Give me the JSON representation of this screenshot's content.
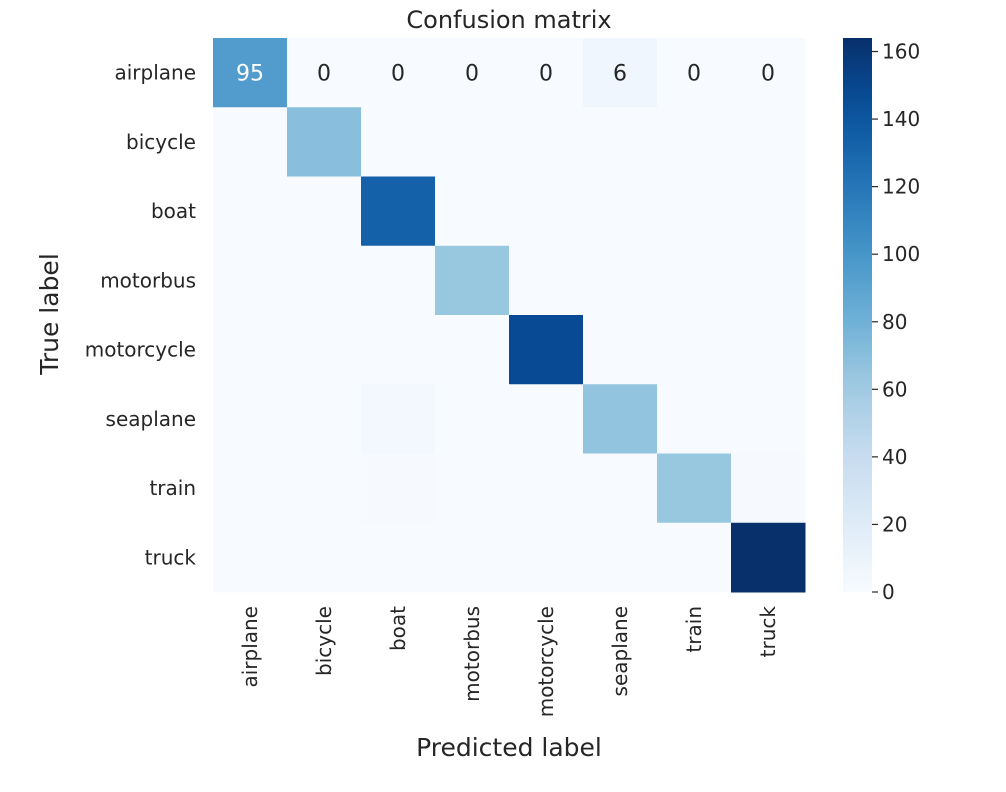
{
  "chart_data": {
    "type": "heatmap",
    "title": "Confusion matrix",
    "xlabel": "Predicted label",
    "ylabel": "True label",
    "x_categories": [
      "airplane",
      "bicycle",
      "boat",
      "motorbus",
      "motorcycle",
      "seaplane",
      "train",
      "truck"
    ],
    "y_categories": [
      "airplane",
      "bicycle",
      "boat",
      "motorbus",
      "motorcycle",
      "seaplane",
      "train",
      "truck"
    ],
    "values": [
      [
        95,
        0,
        0,
        0,
        0,
        6,
        0,
        0
      ],
      [
        0,
        70,
        0,
        0,
        0,
        0,
        0,
        0
      ],
      [
        0,
        0,
        133,
        0,
        0,
        0,
        0,
        0
      ],
      [
        0,
        0,
        0,
        64,
        0,
        0,
        0,
        0
      ],
      [
        0,
        0,
        0,
        0,
        147,
        0,
        0,
        0
      ],
      [
        0,
        0,
        4,
        0,
        0,
        66,
        0,
        0
      ],
      [
        0,
        0,
        1,
        0,
        0,
        0,
        64,
        1
      ],
      [
        0,
        0,
        0,
        0,
        0,
        0,
        0,
        164
      ]
    ],
    "annotated_row": 0,
    "colormap": "Blues",
    "colorbar": {
      "min": 0,
      "max": 164,
      "ticks": [
        0,
        20,
        40,
        60,
        80,
        100,
        120,
        140,
        160
      ]
    },
    "grid": false
  }
}
